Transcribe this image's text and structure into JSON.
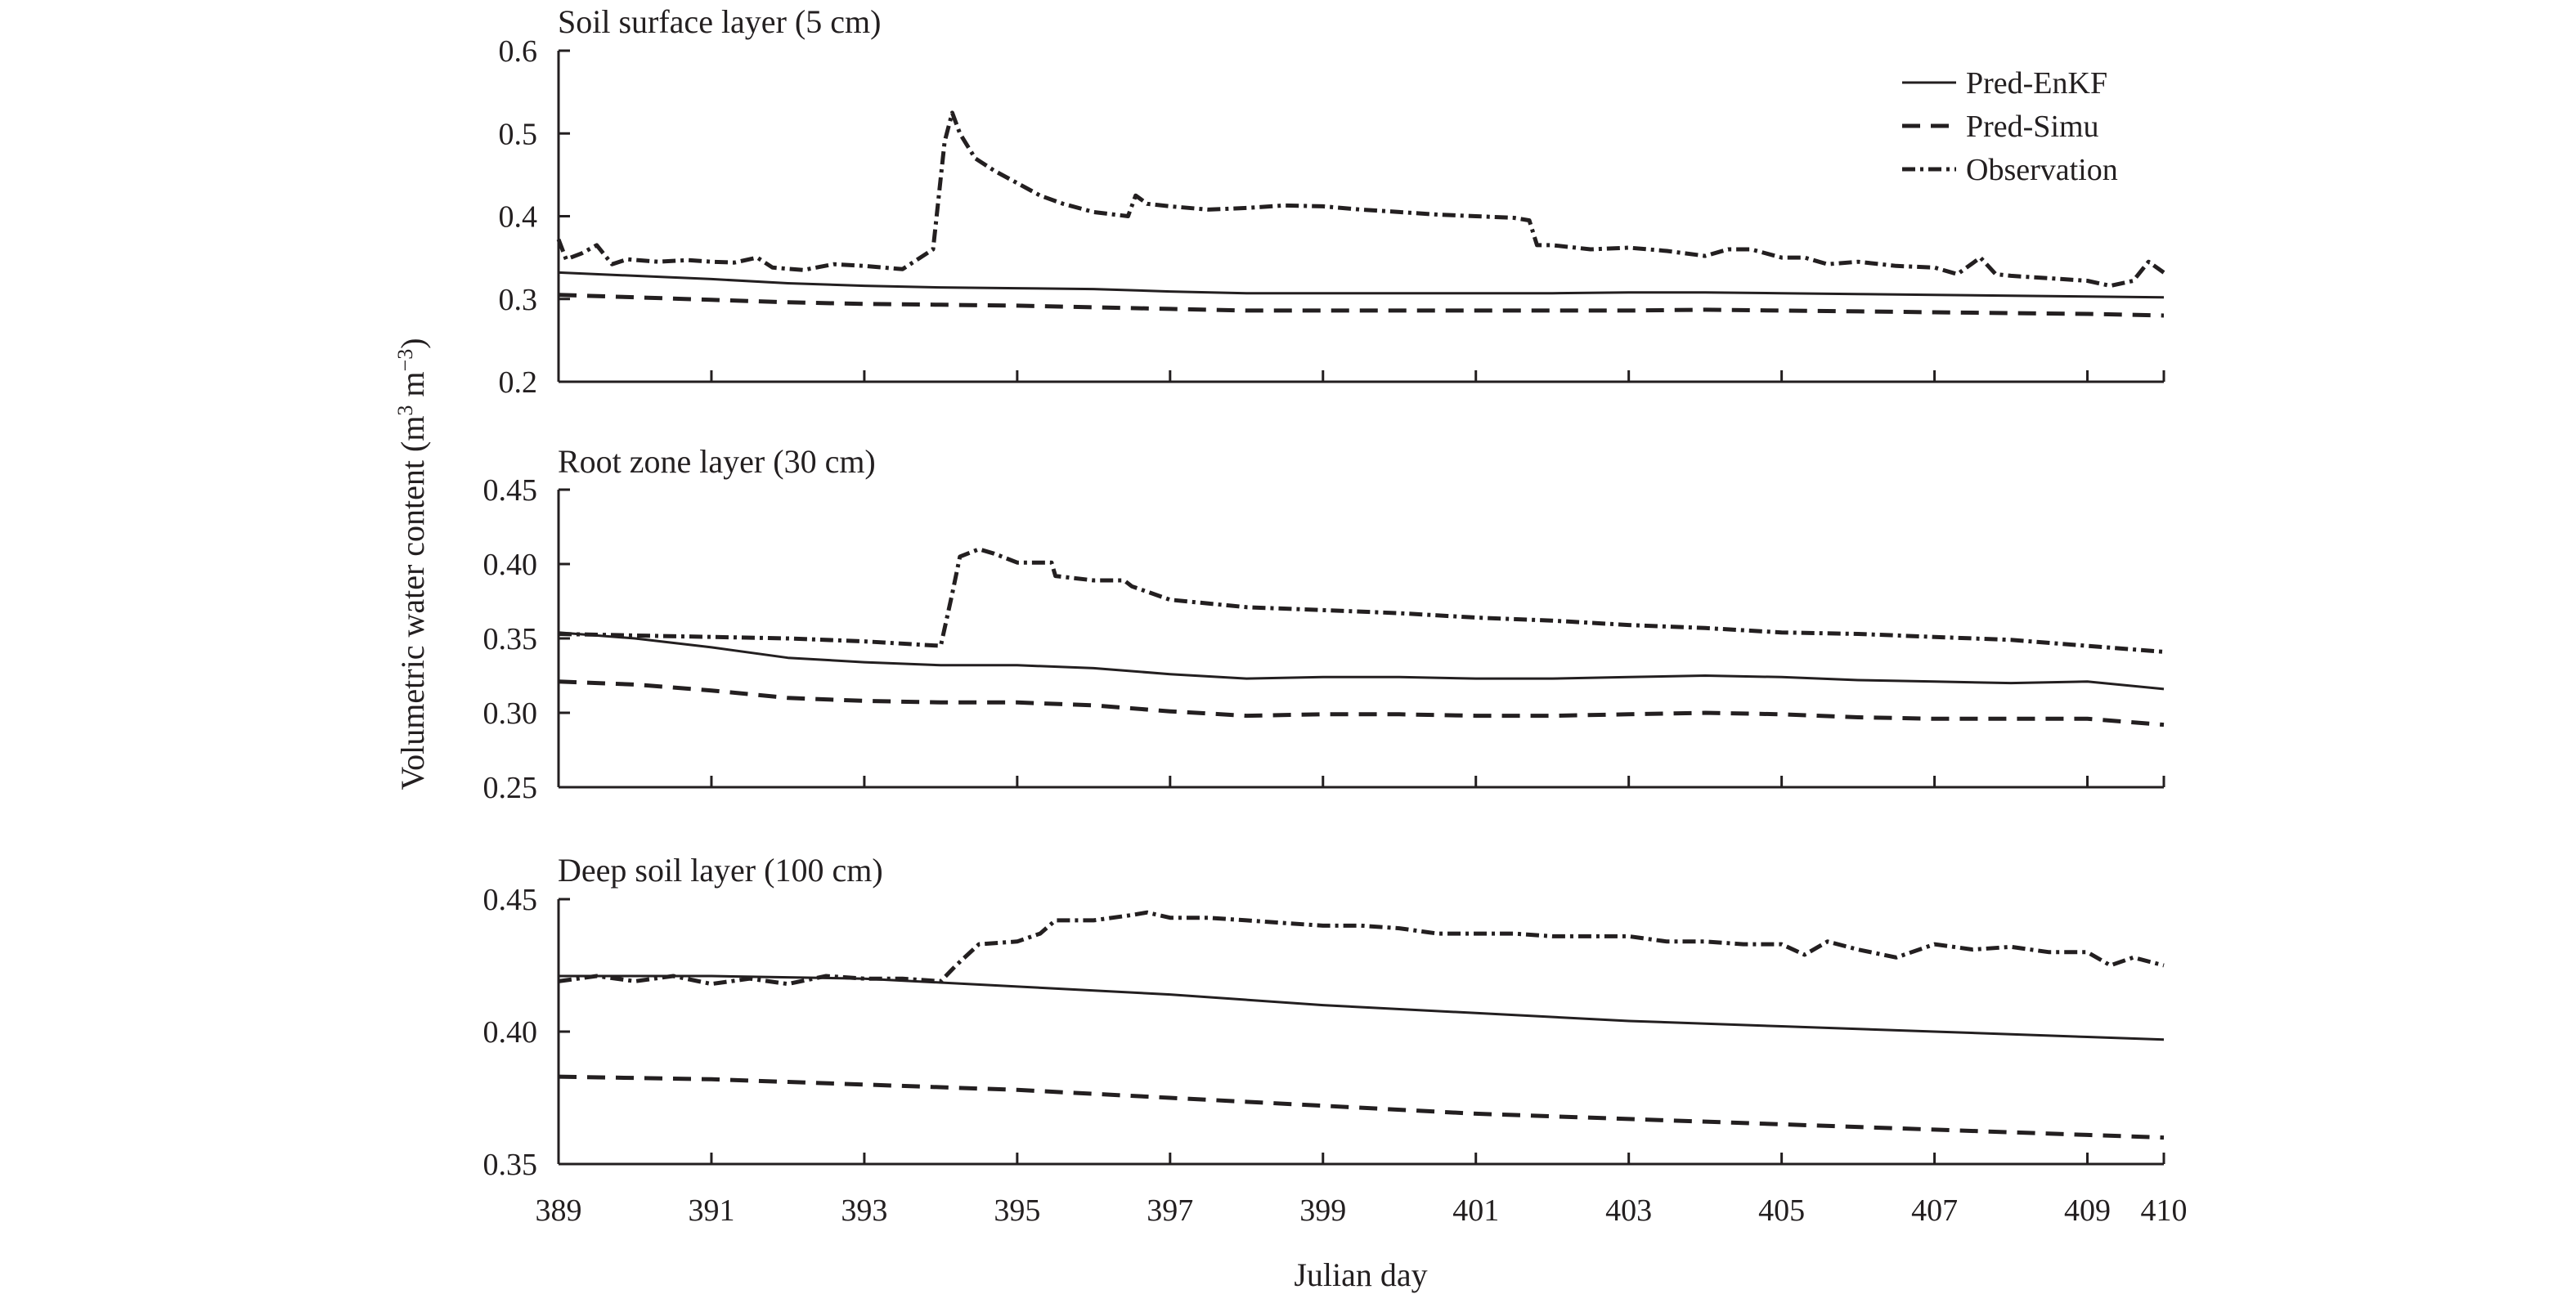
{
  "chart_data": {
    "type": "line",
    "xlabel": "Julian day",
    "ylabel": "Volumetric water content (m",
    "ylabel_sup1": "3",
    "ylabel_mid": " m",
    "ylabel_sup2": "−3",
    "ylabel_end": ")",
    "xlim": [
      389,
      410
    ],
    "xticks": [
      389,
      391,
      393,
      395,
      397,
      399,
      401,
      403,
      405,
      407,
      409,
      410
    ],
    "xtick_labels": [
      "389",
      "391",
      "393",
      "395",
      "397",
      "399",
      "401",
      "403",
      "405",
      "407",
      "409",
      "410"
    ],
    "colors": {
      "line": "#231f20",
      "axis": "#231f20"
    },
    "legend": {
      "position": "top-right",
      "entries": [
        {
          "label": "Pred-EnKF",
          "style": "solid"
        },
        {
          "label": "Pred-Simu",
          "style": "dashed"
        },
        {
          "label": "Observation",
          "style": "dashdot"
        }
      ]
    },
    "panels": [
      {
        "title": "Soil surface layer (5 cm)",
        "ylim": [
          0.2,
          0.6
        ],
        "yticks": [
          0.2,
          0.3,
          0.4,
          0.5,
          0.6
        ],
        "ytick_labels": [
          "0.2",
          "0.3",
          "0.4",
          "0.5",
          "0.6"
        ],
        "series": [
          {
            "name": "Pred-EnKF",
            "style": "solid",
            "x": [
              389,
              390,
              391,
              392,
              393,
              394,
              395,
              396,
              397,
              398,
              399,
              400,
              401,
              402,
              403,
              404,
              405,
              406,
              407,
              408,
              409,
              410
            ],
            "y": [
              0.332,
              0.328,
              0.324,
              0.319,
              0.316,
              0.314,
              0.313,
              0.312,
              0.309,
              0.307,
              0.307,
              0.307,
              0.307,
              0.307,
              0.308,
              0.308,
              0.307,
              0.306,
              0.305,
              0.304,
              0.303,
              0.302
            ]
          },
          {
            "name": "Pred-Simu",
            "style": "dashed",
            "x": [
              389,
              390,
              391,
              392,
              393,
              394,
              395,
              396,
              397,
              398,
              399,
              400,
              401,
              402,
              403,
              404,
              405,
              406,
              407,
              408,
              409,
              410
            ],
            "y": [
              0.305,
              0.302,
              0.299,
              0.296,
              0.294,
              0.293,
              0.292,
              0.29,
              0.288,
              0.286,
              0.286,
              0.286,
              0.286,
              0.286,
              0.286,
              0.287,
              0.286,
              0.285,
              0.284,
              0.283,
              0.282,
              0.28
            ]
          },
          {
            "name": "Observation",
            "style": "dashdot",
            "x": [
              389,
              389.1,
              389.3,
              389.5,
              389.7,
              389.9,
              390.3,
              390.7,
              391,
              391.3,
              391.6,
              391.8,
              392.2,
              392.6,
              393,
              393.5,
              393.9,
              394.05,
              394.15,
              394.25,
              394.45,
              394.7,
              395,
              395.3,
              395.6,
              396,
              396.45,
              396.55,
              396.7,
              397,
              397.5,
              398,
              398.5,
              399,
              399.5,
              400,
              400.5,
              401,
              401.5,
              401.7,
              401.8,
              402,
              402.5,
              403,
              403.5,
              404,
              404.3,
              404.6,
              405,
              405.3,
              405.6,
              406,
              406.5,
              407,
              407.3,
              407.6,
              407.8,
              408,
              408.5,
              409,
              409.3,
              409.6,
              409.8,
              410
            ],
            "y": [
              0.372,
              0.348,
              0.355,
              0.365,
              0.342,
              0.348,
              0.345,
              0.347,
              0.345,
              0.344,
              0.35,
              0.338,
              0.335,
              0.342,
              0.34,
              0.336,
              0.36,
              0.49,
              0.525,
              0.5,
              0.47,
              0.455,
              0.44,
              0.425,
              0.415,
              0.405,
              0.4,
              0.425,
              0.415,
              0.412,
              0.408,
              0.41,
              0.413,
              0.412,
              0.408,
              0.405,
              0.402,
              0.4,
              0.398,
              0.395,
              0.365,
              0.365,
              0.36,
              0.362,
              0.358,
              0.352,
              0.36,
              0.36,
              0.35,
              0.35,
              0.342,
              0.345,
              0.34,
              0.338,
              0.33,
              0.35,
              0.33,
              0.328,
              0.325,
              0.322,
              0.316,
              0.322,
              0.345,
              0.332
            ]
          }
        ]
      },
      {
        "title": "Root zone layer (30 cm)",
        "ylim": [
          0.25,
          0.45
        ],
        "yticks": [
          0.25,
          0.3,
          0.35,
          0.4,
          0.45
        ],
        "ytick_labels": [
          "0.25",
          "0.30",
          "0.35",
          "0.40",
          "0.45"
        ],
        "series": [
          {
            "name": "Pred-EnKF",
            "style": "solid",
            "x": [
              389,
              390,
              391,
              392,
              393,
              394,
              395,
              396,
              397,
              398,
              399,
              400,
              401,
              402,
              403,
              404,
              405,
              406,
              407,
              408,
              409,
              410
            ],
            "y": [
              0.354,
              0.35,
              0.344,
              0.337,
              0.334,
              0.332,
              0.332,
              0.33,
              0.326,
              0.323,
              0.324,
              0.324,
              0.323,
              0.323,
              0.324,
              0.325,
              0.324,
              0.322,
              0.321,
              0.32,
              0.321,
              0.316
            ]
          },
          {
            "name": "Pred-Simu",
            "style": "dashed",
            "x": [
              389,
              390,
              391,
              392,
              393,
              394,
              395,
              396,
              397,
              398,
              399,
              400,
              401,
              402,
              403,
              404,
              405,
              406,
              407,
              408,
              409,
              410
            ],
            "y": [
              0.321,
              0.319,
              0.315,
              0.31,
              0.308,
              0.307,
              0.307,
              0.305,
              0.301,
              0.298,
              0.299,
              0.299,
              0.298,
              0.298,
              0.299,
              0.3,
              0.299,
              0.297,
              0.296,
              0.296,
              0.296,
              0.292
            ]
          },
          {
            "name": "Observation",
            "style": "dashdot",
            "x": [
              389,
              390,
              391,
              392,
              393,
              394,
              394.15,
              394.25,
              394.5,
              394.7,
              395,
              395.45,
              395.5,
              396,
              396.4,
              396.5,
              397,
              398,
              399,
              400,
              401,
              402,
              403,
              404,
              405,
              406,
              407,
              408,
              409,
              410
            ],
            "y": [
              0.353,
              0.352,
              0.351,
              0.35,
              0.348,
              0.345,
              0.38,
              0.405,
              0.41,
              0.407,
              0.401,
              0.401,
              0.392,
              0.389,
              0.389,
              0.385,
              0.376,
              0.371,
              0.369,
              0.367,
              0.364,
              0.362,
              0.359,
              0.357,
              0.354,
              0.353,
              0.351,
              0.349,
              0.345,
              0.341
            ]
          }
        ]
      },
      {
        "title": "Deep soil layer (100 cm)",
        "ylim": [
          0.35,
          0.45
        ],
        "yticks": [
          0.35,
          0.4,
          0.45
        ],
        "ytick_labels": [
          "0.35",
          "0.40",
          "0.45"
        ],
        "series": [
          {
            "name": "Pred-EnKF",
            "style": "solid",
            "x": [
              389,
              391,
              393,
              395,
              397,
              399,
              401,
              403,
              405,
              407,
              409,
              410
            ],
            "y": [
              0.421,
              0.421,
              0.42,
              0.417,
              0.414,
              0.41,
              0.407,
              0.404,
              0.402,
              0.4,
              0.398,
              0.397
            ]
          },
          {
            "name": "Pred-Simu",
            "style": "dashed",
            "x": [
              389,
              391,
              393,
              395,
              397,
              399,
              401,
              403,
              405,
              407,
              409,
              410
            ],
            "y": [
              0.383,
              0.382,
              0.38,
              0.378,
              0.375,
              0.372,
              0.369,
              0.367,
              0.365,
              0.363,
              0.361,
              0.36
            ]
          },
          {
            "name": "Observation",
            "style": "dashdot",
            "x": [
              389,
              389.5,
              390,
              390.5,
              391,
              391.5,
              392,
              392.5,
              393,
              393.5,
              394,
              394.2,
              394.5,
              395,
              395.3,
              395.5,
              396,
              396.5,
              396.7,
              397,
              397.5,
              398,
              398.5,
              399,
              399.5,
              400,
              400.5,
              401,
              401.5,
              402,
              402.5,
              403,
              403.5,
              404,
              404.5,
              405,
              405.3,
              405.6,
              406,
              406.5,
              407,
              407.5,
              408,
              408.5,
              409,
              409.3,
              409.6,
              410
            ],
            "y": [
              0.419,
              0.421,
              0.419,
              0.421,
              0.418,
              0.42,
              0.418,
              0.421,
              0.42,
              0.42,
              0.419,
              0.425,
              0.433,
              0.434,
              0.437,
              0.442,
              0.442,
              0.444,
              0.445,
              0.443,
              0.443,
              0.442,
              0.441,
              0.44,
              0.44,
              0.439,
              0.437,
              0.437,
              0.437,
              0.436,
              0.436,
              0.436,
              0.434,
              0.434,
              0.433,
              0.433,
              0.429,
              0.434,
              0.431,
              0.428,
              0.433,
              0.431,
              0.432,
              0.43,
              0.43,
              0.425,
              0.428,
              0.425
            ]
          }
        ]
      }
    ]
  }
}
